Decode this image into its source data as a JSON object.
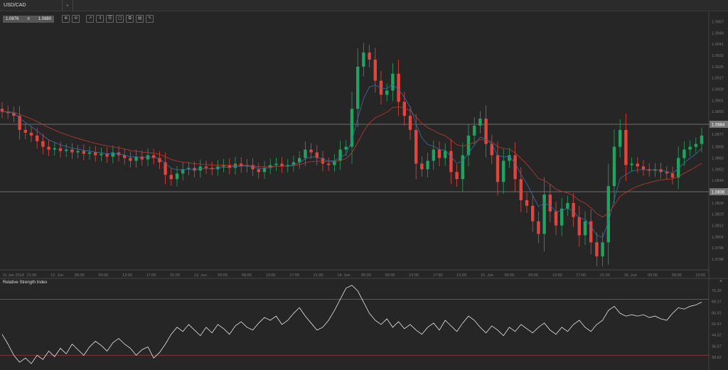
{
  "tabs": [
    {
      "label": "USD/CAD"
    },
    {
      "label": "+"
    }
  ],
  "toolbar": {
    "bid": "1.0876",
    "ask": "1.0880",
    "sep": "≡",
    "icons": [
      "zoom-in-icon",
      "zoom-out-icon",
      "chart-type-icon",
      "candles-icon",
      "indicators-icon",
      "objects-icon",
      "clone-icon",
      "report-icon",
      "draw-icon"
    ]
  },
  "colors": {
    "up": "#1fa35e",
    "down": "#e0463e",
    "ma_fast": "#3a6ea8",
    "ma_slow": "#c0392b",
    "rsi": "#e6e6e6",
    "rsi_upper": "#3e7a3e",
    "rsi_lower": "#a33a3a",
    "bg": "#262626"
  },
  "chart_data": [
    {
      "type": "candlestick",
      "title": "USD/CAD",
      "x_labels": [
        "11 Jun 2014",
        "21:00",
        "12. Jun",
        "05:00",
        "09:00",
        "13:00",
        "17:00",
        "21:00",
        "13. Jun",
        "05:00",
        "09:00",
        "13:00",
        "17:00",
        "21:00",
        "14. Jun",
        "05:00",
        "09:00",
        "13:00",
        "17:00",
        "21:00",
        "15. Jun",
        "05:00",
        "09:00",
        "13:00",
        "17:00",
        "21:00",
        "16. Jun",
        "05:00",
        "09:00",
        "13:00"
      ],
      "y_ticks": [
        "1.0957",
        "1.0949",
        "1.0941",
        "1.0933",
        "1.0925",
        "1.0917",
        "1.0909",
        "1.0901",
        "1.0893",
        "1.0877",
        "1.0868",
        "1.0860",
        "1.0852",
        "1.0844",
        "1.0828",
        "1.0820",
        "1.0812",
        "1.0804",
        "1.0796",
        "1.0788"
      ],
      "ylim": [
        1.0784,
        1.0962
      ],
      "horizontal_lines": [
        {
          "label": "1.0884",
          "value": 1.0884
        },
        {
          "label": "1.0836",
          "value": 1.0836
        }
      ],
      "closes": [
        1.0893,
        1.0892,
        1.089,
        1.088,
        1.0878,
        1.0876,
        1.0872,
        1.0868,
        1.0866,
        1.0867,
        1.0865,
        1.0866,
        1.0864,
        1.0865,
        1.0863,
        1.0864,
        1.0862,
        1.0863,
        1.0861,
        1.0864,
        1.0862,
        1.086,
        1.0858,
        1.0861,
        1.0859,
        1.0862,
        1.086,
        1.0857,
        1.0848,
        1.0845,
        1.0849,
        1.0852,
        1.0853,
        1.0851,
        1.0854,
        1.0853,
        1.0852,
        1.0854,
        1.0855,
        1.0853,
        1.0856,
        1.0854,
        1.0855,
        1.0852,
        1.085,
        1.0853,
        1.0855,
        1.0856,
        1.0854,
        1.0855,
        1.0857,
        1.086,
        1.0866,
        1.0864,
        1.086,
        1.0856,
        1.0855,
        1.0858,
        1.0866,
        1.0868,
        1.0895,
        1.0925,
        1.0935,
        1.093,
        1.0915,
        1.0905,
        1.0908,
        1.092,
        1.09,
        1.089,
        1.088,
        1.0856,
        1.0852,
        1.0858,
        1.0866,
        1.086,
        1.0865,
        1.085,
        1.0845,
        1.0862,
        1.0876,
        1.0883,
        1.0888,
        1.087,
        1.0862,
        1.0843,
        1.0858,
        1.0862,
        1.0845,
        1.083,
        1.0826,
        1.0815,
        1.0806,
        1.0834,
        1.0822,
        1.0812,
        1.0824,
        1.0828,
        1.0818,
        1.0805,
        1.0815,
        1.08,
        1.079,
        1.08,
        1.084,
        1.0868,
        1.088,
        1.0855,
        1.0856,
        1.0854,
        1.0852,
        1.0851,
        1.0852,
        1.085,
        1.0849,
        1.0846,
        1.086,
        1.0866,
        1.0868,
        1.087,
        1.0876
      ],
      "moving_averages": [
        "fast",
        "slow"
      ]
    },
    {
      "type": "line",
      "title": "Relative Strength Index",
      "y_ticks": [
        "76.32",
        "68.37",
        "60.42",
        "52.47",
        "44.52",
        "36.57",
        "28.62"
      ],
      "ylim": [
        26,
        82
      ],
      "levels": [
        70,
        30
      ],
      "values": [
        45,
        38,
        30,
        25,
        28,
        24,
        30,
        27,
        33,
        29,
        35,
        31,
        38,
        34,
        30,
        36,
        40,
        37,
        33,
        39,
        42,
        38,
        35,
        30,
        34,
        36,
        28,
        32,
        38,
        45,
        50,
        47,
        52,
        48,
        44,
        50,
        46,
        52,
        49,
        45,
        51,
        54,
        50,
        48,
        53,
        57,
        55,
        58,
        52,
        55,
        60,
        64,
        58,
        53,
        48,
        50,
        55,
        62,
        70,
        78,
        80,
        76,
        68,
        60,
        55,
        52,
        56,
        50,
        54,
        49,
        52,
        48,
        45,
        50,
        53,
        48,
        55,
        51,
        47,
        53,
        58,
        55,
        50,
        46,
        51,
        48,
        44,
        50,
        47,
        52,
        49,
        46,
        50,
        53,
        48,
        45,
        50,
        47,
        52,
        55,
        50,
        47,
        52,
        55,
        62,
        65,
        60,
        58,
        59,
        58,
        59,
        57,
        58,
        56,
        55,
        60,
        64,
        63,
        65,
        66,
        68
      ]
    }
  ],
  "rsi_close": "×"
}
